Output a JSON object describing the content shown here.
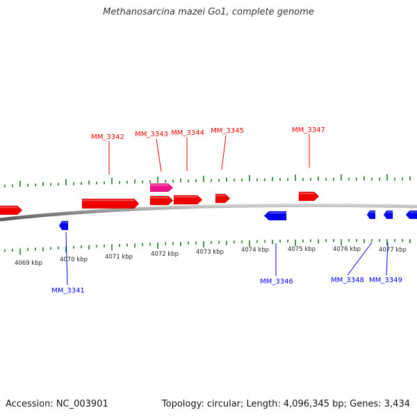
{
  "title": "Methanosarcina mazei Go1, complete genome",
  "footer": {
    "accession": "Accession: NC_003901",
    "summary": "Topology: circular; Length: 4,096,345 bp; Genes: 3,434"
  },
  "colors": {
    "forward": "#ee0000",
    "reverse": "#0000ee",
    "rna": "#ee1188",
    "tick": "#1a7a1a",
    "backbone": "#8a8a8a"
  },
  "ruler": {
    "unit": "kbp",
    "labels": [
      "4069 kbp",
      "4070 kbp",
      "4071 kbp",
      "4072 kbp",
      "4073 kbp",
      "4074 kbp",
      "4075 kbp",
      "4076 kbp",
      "4077 kbp"
    ]
  },
  "genes": [
    {
      "name": "MM_3341",
      "strand": "reverse",
      "labeled": true
    },
    {
      "name": "MM_3342",
      "strand": "forward",
      "labeled": true
    },
    {
      "name": "MM_3343",
      "strand": "forward",
      "labeled": true
    },
    {
      "name": "MM_3344",
      "strand": "forward",
      "labeled": true
    },
    {
      "name": "MM_3345",
      "strand": "forward",
      "labeled": true
    },
    {
      "name": "MM_3346",
      "strand": "reverse",
      "labeled": true
    },
    {
      "name": "MM_3347",
      "strand": "forward",
      "labeled": true
    },
    {
      "name": "MM_3348",
      "strand": "reverse",
      "labeled": true
    },
    {
      "name": "MM_3349",
      "strand": "reverse",
      "labeled": true
    }
  ]
}
